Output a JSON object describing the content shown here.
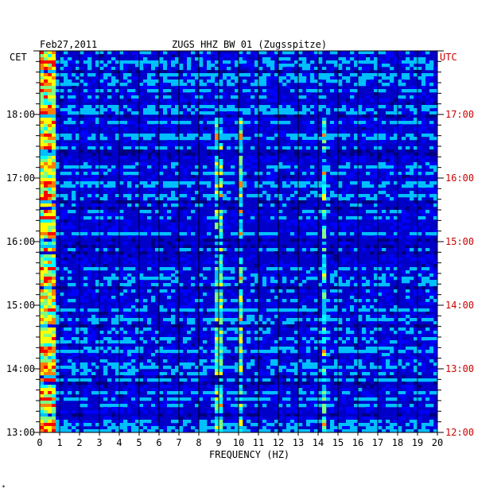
{
  "chart_data": {
    "type": "heatmap",
    "date": "Feb27,2011",
    "title": "ZUGS HHZ BW 01 (Zugsspitze)",
    "left_axis_label": "CET",
    "right_axis_label": "UTC",
    "xlabel": "FREQUENCY (HZ)",
    "xlim": [
      0,
      20
    ],
    "x_ticks": [
      "0",
      "1",
      "2",
      "3",
      "4",
      "5",
      "6",
      "7",
      "8",
      "9",
      "10",
      "11",
      "12",
      "13",
      "14",
      "15",
      "16",
      "17",
      "18",
      "19",
      "20"
    ],
    "time_window_cet": [
      "13:00",
      "19:00"
    ],
    "cet_ticks": [
      {
        "label": "13:00",
        "hour": 13
      },
      {
        "label": "14:00",
        "hour": 14
      },
      {
        "label": "15:00",
        "hour": 15
      },
      {
        "label": "16:00",
        "hour": 16
      },
      {
        "label": "17:00",
        "hour": 17
      },
      {
        "label": "18:00",
        "hour": 18
      }
    ],
    "utc_ticks": [
      {
        "label": "12:00",
        "hour": 13
      },
      {
        "label": "13:00",
        "hour": 14
      },
      {
        "label": "14:00",
        "hour": 15
      },
      {
        "label": "15:00",
        "hour": 16
      },
      {
        "label": "16:00",
        "hour": 17
      },
      {
        "label": "17:00",
        "hour": 18
      }
    ],
    "minor_tick_minutes": 10,
    "colormap": [
      "#000080",
      "#0000ff",
      "#00bfff",
      "#00ffff",
      "#80ff80",
      "#ffff00",
      "#ff8000",
      "#ff0000"
    ],
    "background_color": "#0000c8",
    "dominant_bands_hz": [
      0.3,
      9.0,
      10.1,
      14.3
    ],
    "colors": {
      "axis_text": "#000000",
      "utc_text": "#cc0000"
    }
  },
  "footer_mark": "*"
}
